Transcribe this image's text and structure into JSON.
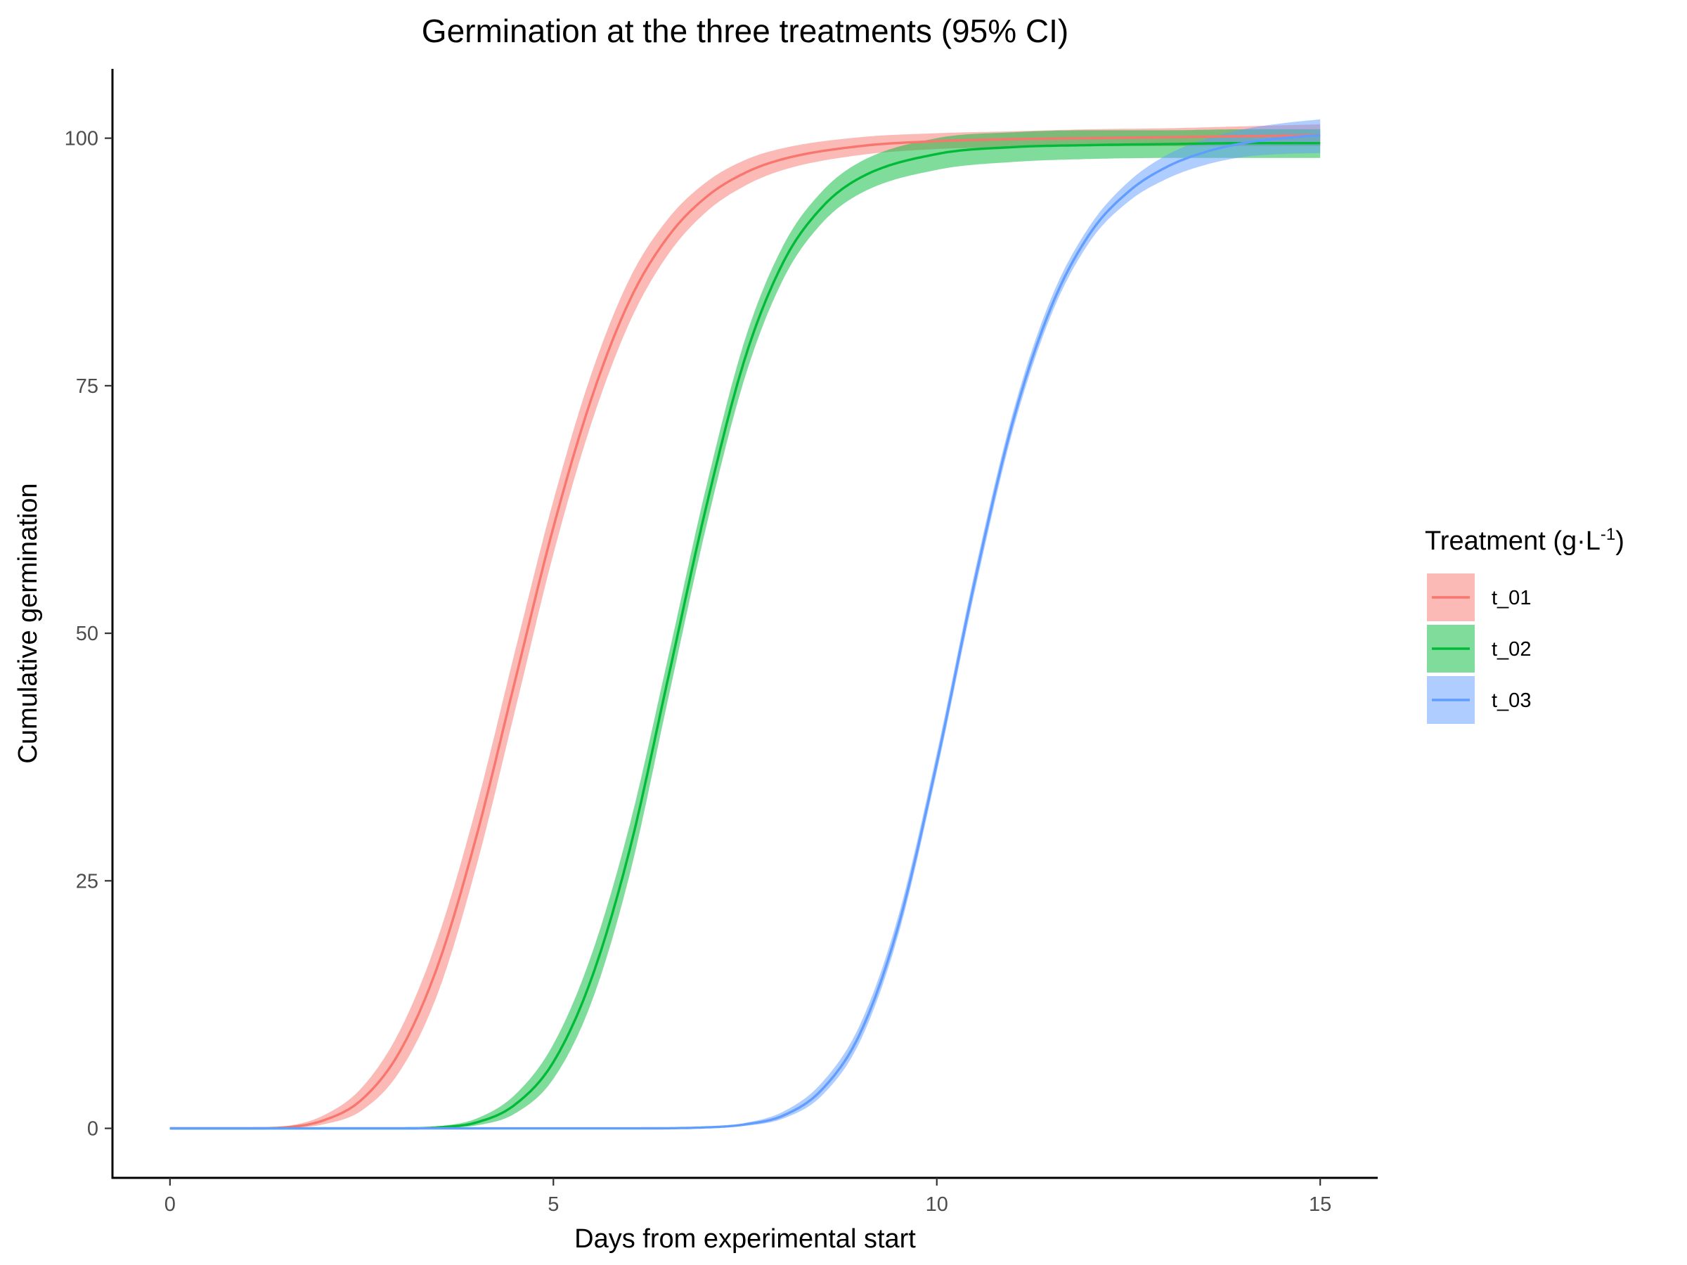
{
  "chart_data": {
    "type": "line",
    "title": "Germination at the three treatments (95% CI)",
    "xlabel": "Days from experimental start",
    "ylabel": "Cumulative germination",
    "xlim": [
      -0.75,
      15.75
    ],
    "ylim": [
      -5,
      107
    ],
    "x_ticks": [
      0,
      5,
      10,
      15
    ],
    "y_ticks": [
      0,
      25,
      50,
      75,
      100
    ],
    "grid": false,
    "legend": {
      "title_main": "Treatment (g·L",
      "title_sup": "-1",
      "title_end": ")",
      "placement": "right"
    },
    "series": [
      {
        "name": "t_01",
        "color": "#F8766D",
        "x": [
          0,
          1,
          1.5,
          2,
          2.5,
          3,
          3.5,
          4,
          4.5,
          5,
          5.5,
          6,
          6.5,
          7,
          7.5,
          8,
          9,
          10,
          11,
          12,
          13,
          14,
          15
        ],
        "y": [
          0,
          0,
          0.1,
          0.8,
          2.9,
          7.8,
          16.6,
          29.6,
          45.2,
          60.7,
          73.8,
          83.7,
          90.1,
          94.1,
          96.5,
          97.9,
          99.2,
          99.7,
          99.9,
          100,
          100.1,
          100.2,
          100.3
        ],
        "ci_low": [
          0,
          0,
          0.05,
          0.4,
          1.8,
          5.8,
          13.8,
          26.6,
          42.2,
          58.0,
          71.3,
          81.5,
          88.3,
          92.6,
          95.2,
          96.8,
          98.3,
          98.9,
          99.1,
          99.2,
          99.2,
          99.2,
          99.2
        ],
        "ci_high": [
          0,
          0,
          0.2,
          1.3,
          4.1,
          9.9,
          19.4,
          32.6,
          48.2,
          63.4,
          76.3,
          85.9,
          91.9,
          95.6,
          97.8,
          99.0,
          100.1,
          100.5,
          100.7,
          100.9,
          101.0,
          101.2,
          101.4
        ]
      },
      {
        "name": "t_02",
        "color": "#00BA38",
        "x": [
          0,
          2,
          3,
          3.5,
          4,
          4.5,
          5,
          5.5,
          6,
          6.5,
          7,
          7.5,
          8,
          8.5,
          9,
          10,
          11,
          12,
          13,
          14,
          15
        ],
        "y": [
          0,
          0,
          0,
          0.1,
          0.6,
          2.4,
          6.7,
          15.2,
          28.3,
          45.6,
          63.0,
          77.8,
          87.5,
          93.0,
          96.0,
          98.4,
          99.1,
          99.3,
          99.4,
          99.5,
          99.5
        ],
        "ci_low": [
          0,
          0,
          0,
          0.05,
          0.3,
          1.5,
          5.0,
          12.8,
          25.8,
          43.5,
          61.0,
          75.9,
          85.8,
          91.4,
          94.4,
          96.8,
          97.6,
          97.9,
          98.0,
          98.0,
          98.0
        ],
        "ci_high": [
          0,
          0,
          0,
          0.2,
          1.0,
          3.4,
          8.5,
          17.6,
          30.8,
          47.7,
          65.0,
          79.7,
          89.2,
          94.6,
          97.6,
          100.0,
          100.6,
          100.8,
          100.8,
          100.9,
          100.9
        ],
        "_": null
      },
      {
        "name": "t_03",
        "color": "#619CFF",
        "x": [
          0,
          5,
          6,
          7,
          7.5,
          8,
          8.5,
          9,
          9.5,
          10,
          10.5,
          11,
          11.5,
          12,
          12.5,
          13,
          13.5,
          14,
          14.5,
          15
        ],
        "y": [
          0,
          0,
          0,
          0.1,
          0.4,
          1.3,
          3.9,
          9.6,
          20.5,
          36.9,
          55.4,
          71.6,
          83.1,
          90.4,
          94.6,
          97.1,
          98.6,
          99.5,
          100.0,
          100.3
        ],
        "ci_low": [
          0,
          0,
          0,
          0.05,
          0.25,
          1.0,
          3.3,
          8.8,
          19.6,
          36.0,
          54.4,
          70.7,
          82.3,
          89.6,
          93.6,
          95.9,
          97.3,
          98.1,
          98.4,
          98.5
        ],
        "ci_high": [
          0,
          0,
          0,
          0.15,
          0.55,
          1.7,
          4.6,
          10.5,
          21.5,
          37.9,
          56.4,
          72.5,
          84.0,
          91.2,
          95.6,
          98.3,
          99.9,
          100.9,
          101.5,
          101.9
        ]
      }
    ]
  }
}
